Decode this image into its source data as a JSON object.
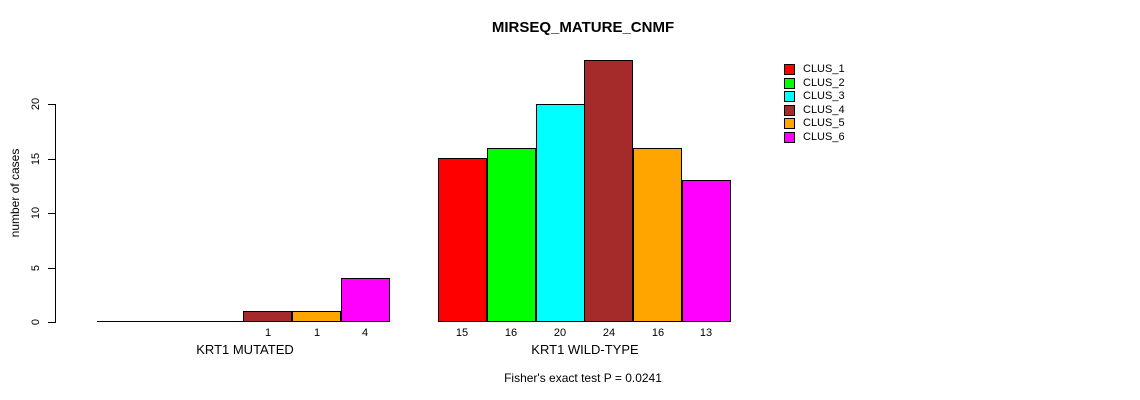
{
  "chart_data": {
    "type": "bar",
    "title": "MIRSEQ_MATURE_CNMF",
    "ylabel": "number of cases",
    "xlabel": "",
    "annotation": "Fisher's exact test P = 0.0241",
    "categories": [
      "KRT1 MUTATED",
      "KRT1 WILD-TYPE"
    ],
    "series": [
      {
        "name": "CLUS_1",
        "color": "#ff0000",
        "values": [
          0,
          15
        ]
      },
      {
        "name": "CLUS_2",
        "color": "#00ff00",
        "values": [
          0,
          16
        ]
      },
      {
        "name": "CLUS_3",
        "color": "#00ffff",
        "values": [
          0,
          20
        ]
      },
      {
        "name": "CLUS_4",
        "color": "#a52a2a",
        "values": [
          1,
          24
        ]
      },
      {
        "name": "CLUS_5",
        "color": "#ffa500",
        "values": [
          1,
          16
        ]
      },
      {
        "name": "CLUS_6",
        "color": "#ff00ff",
        "values": [
          4,
          13
        ]
      }
    ],
    "groups": [
      {
        "label": "KRT1 MUTATED",
        "values": [
          0,
          0,
          0,
          1,
          1,
          4
        ],
        "bar_labels": [
          "",
          "",
          "",
          "1",
          "1",
          "4"
        ]
      },
      {
        "label": "KRT1 WILD-TYPE",
        "values": [
          15,
          16,
          20,
          24,
          16,
          13
        ],
        "bar_labels": [
          "15",
          "16",
          "20",
          "24",
          "16",
          "13"
        ]
      }
    ],
    "yticks": [
      0,
      5,
      10,
      15,
      20
    ],
    "ylim": [
      0,
      24
    ],
    "grid": false,
    "legend": {
      "position": "right",
      "entries": [
        {
          "label": "CLUS_1",
          "color": "#ff0000"
        },
        {
          "label": "CLUS_2",
          "color": "#00ff00"
        },
        {
          "label": "CLUS_3",
          "color": "#00ffff"
        },
        {
          "label": "CLUS_4",
          "color": "#a52a2a"
        },
        {
          "label": "CLUS_5",
          "color": "#ffa500"
        },
        {
          "label": "CLUS_6",
          "color": "#ff00ff"
        }
      ]
    },
    "colors": {
      "axis": "#000000",
      "bar_border": "#000000",
      "text": "#000000",
      "background": "#ffffff"
    }
  }
}
